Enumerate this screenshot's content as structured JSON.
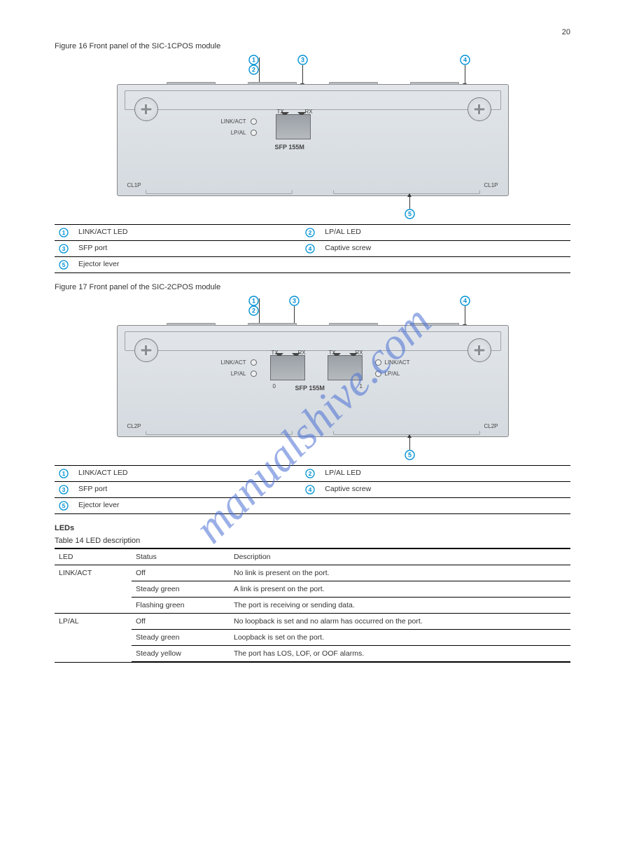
{
  "page_number": "20",
  "watermark": "manualshive.com",
  "accent_color": "#0091d4",
  "figure1": {
    "caption": "Figure 16 Front panel of the SIC-1CPOS module",
    "callouts": {
      "c1": "1",
      "c2": "2",
      "c3": "3",
      "c4": "4",
      "c5": "5"
    },
    "panel": {
      "led1_label": "LINK/ACT",
      "led2_label": "LP/AL",
      "tx": "TX",
      "rx": "RX",
      "sfp_label": "SFP 155M",
      "left_marking": "CL1P",
      "right_marking": "CL1P"
    }
  },
  "legend1": {
    "rows": [
      {
        "n": "1",
        "t": "LINK/ACT LED",
        "n2": "2",
        "t2": "LP/AL LED"
      },
      {
        "n": "3",
        "t": "SFP port",
        "n2": "4",
        "t2": "Captive screw"
      },
      {
        "n": "5",
        "t": "Ejector lever",
        "n2": "",
        "t2": ""
      }
    ]
  },
  "figure2": {
    "caption": "Figure 17 Front panel of the SIC-2CPOS module",
    "callouts": {
      "c1": "1",
      "c2": "2",
      "c3": "3",
      "c4": "4",
      "c5": "5"
    },
    "panel": {
      "led1_label": "LINK/ACT",
      "led2_label": "LP/AL",
      "tx": "TX",
      "rx": "RX",
      "port0": "0",
      "port1": "1",
      "sfp_label": "SFP 155M",
      "led3_label": "LINK/ACT",
      "led4_label": "LP/AL",
      "left_marking": "CL2P",
      "right_marking": "CL2P"
    }
  },
  "legend2": {
    "rows": [
      {
        "n": "1",
        "t": "LINK/ACT LED",
        "n2": "2",
        "t2": "LP/AL LED"
      },
      {
        "n": "3",
        "t": "SFP port",
        "n2": "4",
        "t2": "Captive screw"
      },
      {
        "n": "5",
        "t": "Ejector lever",
        "n2": "",
        "t2": ""
      }
    ]
  },
  "leds_section": {
    "title": "LEDs",
    "caption": "Table 14 LED description",
    "headers": {
      "h1": "LED",
      "h2": "Status",
      "h3": "Description"
    },
    "rows": [
      {
        "led": "LINK/ACT",
        "status": "Off",
        "desc": "No link is present on the port.",
        "rowspan": 3
      },
      {
        "led": "",
        "status": "Steady green",
        "desc": "A link is present on the port."
      },
      {
        "led": "",
        "status": "Flashing green",
        "desc": "The port is receiving or sending data."
      },
      {
        "led": "LP/AL",
        "status": "Off",
        "desc": "No loopback is set and no alarm has occurred on the port.",
        "rowspan": 3
      },
      {
        "led": "",
        "status": "Steady green",
        "desc": "Loopback is set on the port."
      },
      {
        "led": "",
        "status": "Steady yellow",
        "desc": "The port has LOS, LOF, or OOF alarms."
      }
    ]
  }
}
